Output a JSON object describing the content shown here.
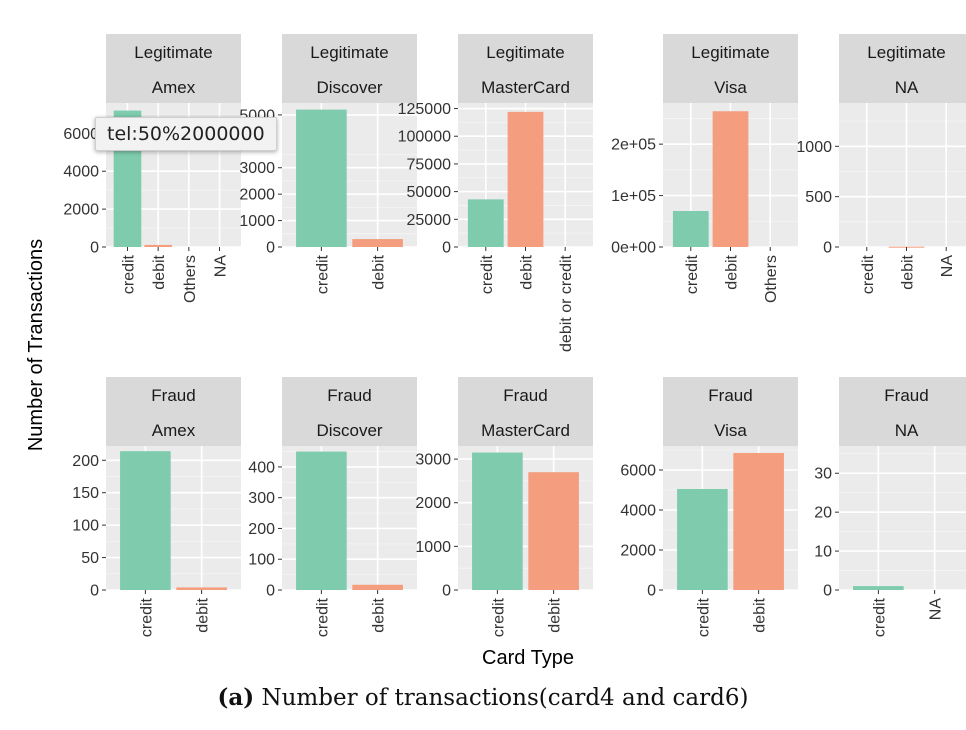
{
  "chart_data": {
    "type": "bar",
    "layout": "facet-grid",
    "xlabel": "Card Type",
    "ylabel": "Number of Transactions",
    "colors": {
      "credit": "#7fcbad",
      "other": "#f49e7f"
    },
    "panels": [
      {
        "row": 0,
        "col": 0,
        "strip_top": "Legitimate",
        "strip_bottom": "Amex",
        "categories": [
          "credit",
          "debit",
          "Others",
          "NA"
        ],
        "values": [
          7200,
          110,
          0,
          0
        ],
        "ylim": [
          0,
          7600
        ],
        "yticks": [
          0,
          2000,
          4000,
          6000
        ],
        "yticklabels": [
          "0",
          "2000",
          "4000",
          "6000"
        ]
      },
      {
        "row": 0,
        "col": 1,
        "strip_top": "Legitimate",
        "strip_bottom": "Discover",
        "categories": [
          "credit",
          "debit"
        ],
        "values": [
          5200,
          300
        ],
        "ylim": [
          0,
          5450
        ],
        "yticks": [
          0,
          1000,
          2000,
          3000,
          5000
        ],
        "yticklabels": [
          "0",
          "1000",
          "2000",
          "3000",
          "5000"
        ]
      },
      {
        "row": 0,
        "col": 2,
        "strip_top": "Legitimate",
        "strip_bottom": "MasterCard",
        "categories": [
          "credit",
          "debit",
          "debit or credit"
        ],
        "values": [
          43000,
          122000,
          0
        ],
        "ylim": [
          0,
          130000
        ],
        "yticks": [
          0,
          25000,
          50000,
          75000,
          100000,
          125000
        ],
        "yticklabels": [
          "0",
          "25000",
          "50000",
          "75000",
          "100000",
          "125000"
        ]
      },
      {
        "row": 0,
        "col": 3,
        "strip_top": "Legitimate",
        "strip_bottom": "Visa",
        "categories": [
          "credit",
          "debit",
          "Others"
        ],
        "values": [
          70000,
          264000,
          0
        ],
        "ylim": [
          0,
          280000
        ],
        "yticks": [
          0,
          100000,
          200000
        ],
        "yticklabels": [
          "0e+00",
          "1e+05",
          "2e+05"
        ]
      },
      {
        "row": 0,
        "col": 4,
        "strip_top": "Legitimate",
        "strip_bottom": "NA",
        "categories": [
          "credit",
          "debit",
          "NA"
        ],
        "values": [
          0,
          3,
          0
        ],
        "ylim": [
          0,
          1430
        ],
        "yticks": [
          0,
          500,
          1000
        ],
        "yticklabels": [
          "0",
          "500",
          "1000"
        ]
      },
      {
        "row": 1,
        "col": 0,
        "strip_top": "Fraud",
        "strip_bottom": "Amex",
        "categories": [
          "credit",
          "debit"
        ],
        "values": [
          214,
          4
        ],
        "ylim": [
          0,
          222
        ],
        "yticks": [
          0,
          50,
          100,
          150,
          200
        ],
        "yticklabels": [
          "0",
          "50",
          "100",
          "150",
          "200"
        ]
      },
      {
        "row": 1,
        "col": 1,
        "strip_top": "Fraud",
        "strip_bottom": "Discover",
        "categories": [
          "credit",
          "debit"
        ],
        "values": [
          450,
          17
        ],
        "ylim": [
          0,
          468
        ],
        "yticks": [
          0,
          100,
          200,
          300,
          400
        ],
        "yticklabels": [
          "0",
          "100",
          "200",
          "300",
          "400"
        ]
      },
      {
        "row": 1,
        "col": 2,
        "strip_top": "Fraud",
        "strip_bottom": "MasterCard",
        "categories": [
          "credit",
          "debit"
        ],
        "values": [
          3150,
          2700
        ],
        "ylim": [
          0,
          3300
        ],
        "yticks": [
          0,
          1000,
          2000,
          3000
        ],
        "yticklabels": [
          "0",
          "1000",
          "2000",
          "3000"
        ]
      },
      {
        "row": 1,
        "col": 3,
        "strip_top": "Fraud",
        "strip_bottom": "Visa",
        "categories": [
          "credit",
          "debit"
        ],
        "values": [
          5050,
          6850
        ],
        "ylim": [
          0,
          7200
        ],
        "yticks": [
          0,
          2000,
          4000,
          6000
        ],
        "yticklabels": [
          "0",
          "2000",
          "4000",
          "6000"
        ]
      },
      {
        "row": 1,
        "col": 4,
        "strip_top": "Fraud",
        "strip_bottom": "NA",
        "categories": [
          "credit",
          "NA"
        ],
        "values": [
          1,
          0
        ],
        "ylim": [
          0,
          37
        ],
        "yticks": [
          0,
          10,
          20,
          30
        ],
        "yticklabels": [
          "0",
          "10",
          "20",
          "30"
        ]
      }
    ]
  },
  "caption": {
    "label": "(a)",
    "text": "Number of transactions(card4 and card6)"
  },
  "tooltip": {
    "text": "tel:50%2000000"
  }
}
